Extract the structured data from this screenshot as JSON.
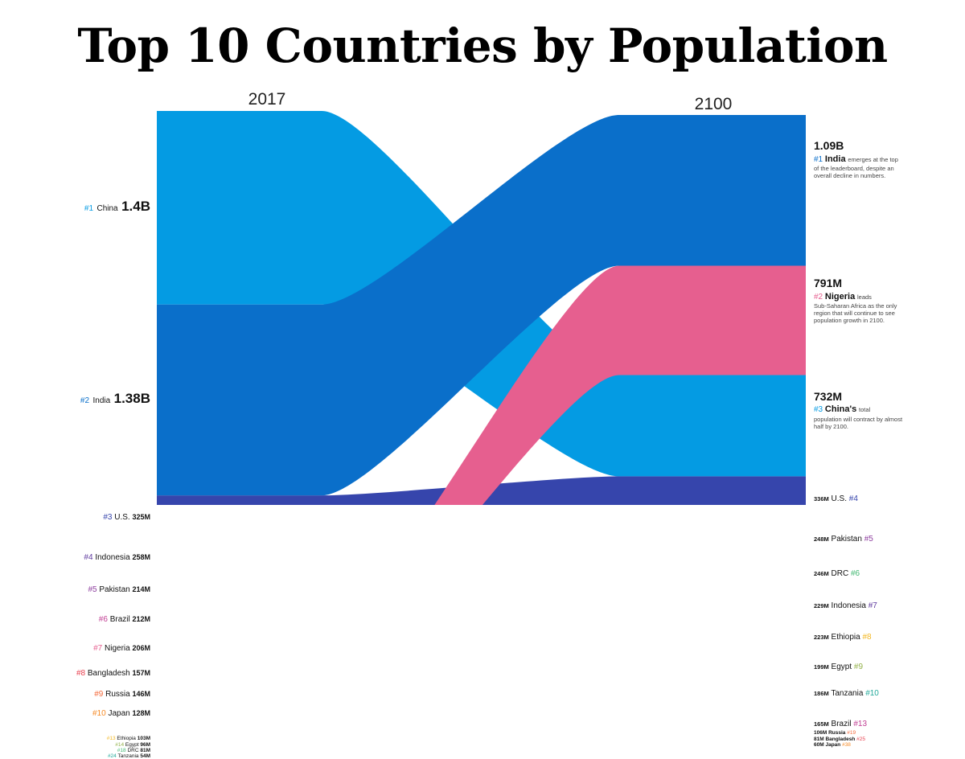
{
  "title": "Top 10 Countries by Population",
  "colors": {
    "china": "#049be3",
    "india": "#0a6fca",
    "us": "#3645ac",
    "indonesia": "#5f3b9f",
    "pakistan": "#8e3f9f",
    "brazil": "#c13e93",
    "nigeria": "#e65f8f",
    "bangladesh": "#e8404f",
    "russia": "#f4693a",
    "japan": "#f68a25",
    "ethiopia": "#f3b61f",
    "egypt": "#93b24a",
    "drc": "#41b871",
    "tanzania": "#22a99a"
  },
  "chart_data": {
    "type": "sankey",
    "title": "Top 10 Countries by Population",
    "columns": [
      "2017",
      "2100"
    ],
    "nodes": [
      {
        "key": "china",
        "country": "China",
        "rank_2017": "#1",
        "pop_2017": "1.4B",
        "rank_2100": "#3",
        "pop_2100": "732M",
        "value_2017": 1400,
        "value_2100": 732
      },
      {
        "key": "india",
        "country": "India",
        "rank_2017": "#2",
        "pop_2017": "1.38B",
        "rank_2100": "#1",
        "pop_2100": "1.09B",
        "value_2017": 1380,
        "value_2100": 1090
      },
      {
        "key": "us",
        "country": "U.S.",
        "rank_2017": "#3",
        "pop_2017": "325M",
        "rank_2100": "#4",
        "pop_2100": "336M",
        "value_2017": 325,
        "value_2100": 336
      },
      {
        "key": "indonesia",
        "country": "Indonesia",
        "rank_2017": "#4",
        "pop_2017": "258M",
        "rank_2100": "#7",
        "pop_2100": "229M",
        "value_2017": 258,
        "value_2100": 229
      },
      {
        "key": "pakistan",
        "country": "Pakistan",
        "rank_2017": "#5",
        "pop_2017": "214M",
        "rank_2100": "#5",
        "pop_2100": "248M",
        "value_2017": 214,
        "value_2100": 248
      },
      {
        "key": "brazil",
        "country": "Brazil",
        "rank_2017": "#6",
        "pop_2017": "212M",
        "rank_2100": "#13",
        "pop_2100": "165M",
        "value_2017": 212,
        "value_2100": 165
      },
      {
        "key": "nigeria",
        "country": "Nigeria",
        "rank_2017": "#7",
        "pop_2017": "206M",
        "rank_2100": "#2",
        "pop_2100": "791M",
        "value_2017": 206,
        "value_2100": 791
      },
      {
        "key": "bangladesh",
        "country": "Bangladesh",
        "rank_2017": "#8",
        "pop_2017": "157M",
        "rank_2100": "#25",
        "pop_2100": "81M",
        "value_2017": 157,
        "value_2100": 81
      },
      {
        "key": "russia",
        "country": "Russia",
        "rank_2017": "#9",
        "pop_2017": "146M",
        "rank_2100": "#19",
        "pop_2100": "106M",
        "value_2017": 146,
        "value_2100": 106
      },
      {
        "key": "japan",
        "country": "Japan",
        "rank_2017": "#10",
        "pop_2017": "128M",
        "rank_2100": "#38",
        "pop_2100": "60M",
        "value_2017": 128,
        "value_2100": 60
      },
      {
        "key": "ethiopia",
        "country": "Ethiopia",
        "rank_2017": "#13",
        "pop_2017": "103M",
        "rank_2100": "#8",
        "pop_2100": "223M",
        "value_2017": 103,
        "value_2100": 223
      },
      {
        "key": "egypt",
        "country": "Egypt",
        "rank_2017": "#14",
        "pop_2017": "96M",
        "rank_2100": "#9",
        "pop_2100": "199M",
        "value_2017": 96,
        "value_2100": 199
      },
      {
        "key": "drc",
        "country": "DRC",
        "rank_2017": "#18",
        "pop_2017": "81M",
        "rank_2100": "#6",
        "pop_2100": "246M",
        "value_2017": 81,
        "value_2100": 246
      },
      {
        "key": "tanzania",
        "country": "Tanzania",
        "rank_2017": "#24",
        "pop_2017": "54M",
        "rank_2100": "#10",
        "pop_2100": "186M",
        "value_2017": 54,
        "value_2100": 186
      }
    ],
    "order_2017": [
      "china",
      "india",
      "us",
      "indonesia",
      "pakistan",
      "brazil",
      "nigeria",
      "bangladesh",
      "russia",
      "japan",
      "ethiopia",
      "egypt",
      "drc",
      "tanzania"
    ],
    "order_2100": [
      "india",
      "nigeria",
      "china",
      "us",
      "pakistan",
      "drc",
      "indonesia",
      "ethiopia",
      "egypt",
      "tanzania",
      "brazil",
      "russia",
      "bangladesh",
      "japan"
    ],
    "top10_cutoff_marker": "dotted line",
    "callouts": {
      "india": {
        "value": "1.09B",
        "rank": "#1",
        "name": "India",
        "text_inline": "emerges at the top",
        "text": "of the leaderboard, despite an overall decline in numbers."
      },
      "nigeria": {
        "value": "791M",
        "rank": "#2",
        "name": "Nigeria",
        "text_inline": "leads",
        "text": "Sub-Saharan Africa as the only region that will continue to see population growth in 2100."
      },
      "china": {
        "value": "732M",
        "rank": "#3",
        "name": "China's",
        "text_inline": "total",
        "text": "population will contract by almost half by 2100."
      }
    }
  }
}
